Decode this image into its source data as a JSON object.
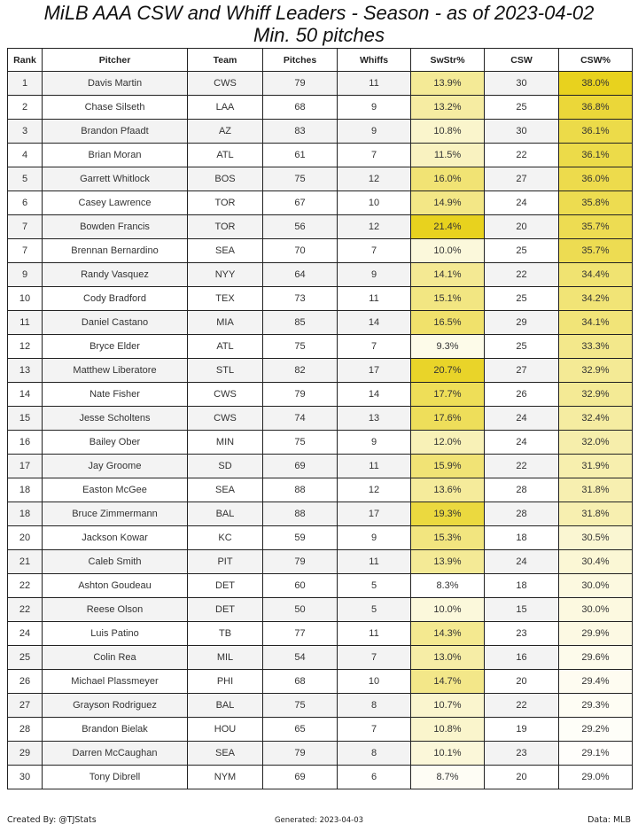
{
  "title": "MiLB AAA CSW and Whiff Leaders - Season - as of 2023-04-02",
  "subtitle": "Min. 50 pitches",
  "footer": {
    "created_by": "Created By: @TJStats",
    "generated": "Generated: 2023-04-03",
    "data_source": "Data: MLB"
  },
  "colors": {
    "scale_low": "#ffffff",
    "scale_high": "#e8d21e",
    "row_alt": "#f3f3f3",
    "border": "#222222"
  },
  "chart_data": {
    "type": "table",
    "title": "MiLB AAA CSW and Whiff Leaders - Season - as of 2023-04-02",
    "subtitle": "Min. 50 pitches",
    "columns": [
      "Rank",
      "Pitcher",
      "Team",
      "Pitches",
      "Whiffs",
      "SwStr%",
      "CSW",
      "CSW%"
    ],
    "color_scaled_columns": [
      "SwStr%",
      "CSW%"
    ],
    "rows": [
      [
        "1",
        "Davis Martin",
        "CWS",
        "79",
        "11",
        "13.9%",
        "30",
        "38.0%"
      ],
      [
        "2",
        "Chase Silseth",
        "LAA",
        "68",
        "9",
        "13.2%",
        "25",
        "36.8%"
      ],
      [
        "3",
        "Brandon Pfaadt",
        "AZ",
        "83",
        "9",
        "10.8%",
        "30",
        "36.1%"
      ],
      [
        "4",
        "Brian Moran",
        "ATL",
        "61",
        "7",
        "11.5%",
        "22",
        "36.1%"
      ],
      [
        "5",
        "Garrett Whitlock",
        "BOS",
        "75",
        "12",
        "16.0%",
        "27",
        "36.0%"
      ],
      [
        "6",
        "Casey Lawrence",
        "TOR",
        "67",
        "10",
        "14.9%",
        "24",
        "35.8%"
      ],
      [
        "7",
        "Bowden Francis",
        "TOR",
        "56",
        "12",
        "21.4%",
        "20",
        "35.7%"
      ],
      [
        "7",
        "Brennan Bernardino",
        "SEA",
        "70",
        "7",
        "10.0%",
        "25",
        "35.7%"
      ],
      [
        "9",
        "Randy Vasquez",
        "NYY",
        "64",
        "9",
        "14.1%",
        "22",
        "34.4%"
      ],
      [
        "10",
        "Cody Bradford",
        "TEX",
        "73",
        "11",
        "15.1%",
        "25",
        "34.2%"
      ],
      [
        "11",
        "Daniel Castano",
        "MIA",
        "85",
        "14",
        "16.5%",
        "29",
        "34.1%"
      ],
      [
        "12",
        "Bryce Elder",
        "ATL",
        "75",
        "7",
        "9.3%",
        "25",
        "33.3%"
      ],
      [
        "13",
        "Matthew Liberatore",
        "STL",
        "82",
        "17",
        "20.7%",
        "27",
        "32.9%"
      ],
      [
        "14",
        "Nate Fisher",
        "CWS",
        "79",
        "14",
        "17.7%",
        "26",
        "32.9%"
      ],
      [
        "15",
        "Jesse Scholtens",
        "CWS",
        "74",
        "13",
        "17.6%",
        "24",
        "32.4%"
      ],
      [
        "16",
        "Bailey Ober",
        "MIN",
        "75",
        "9",
        "12.0%",
        "24",
        "32.0%"
      ],
      [
        "17",
        "Jay Groome",
        "SD",
        "69",
        "11",
        "15.9%",
        "22",
        "31.9%"
      ],
      [
        "18",
        "Easton McGee",
        "SEA",
        "88",
        "12",
        "13.6%",
        "28",
        "31.8%"
      ],
      [
        "18",
        "Bruce Zimmermann",
        "BAL",
        "88",
        "17",
        "19.3%",
        "28",
        "31.8%"
      ],
      [
        "20",
        "Jackson Kowar",
        "KC",
        "59",
        "9",
        "15.3%",
        "18",
        "30.5%"
      ],
      [
        "21",
        "Caleb Smith",
        "PIT",
        "79",
        "11",
        "13.9%",
        "24",
        "30.4%"
      ],
      [
        "22",
        "Ashton Goudeau",
        "DET",
        "60",
        "5",
        "8.3%",
        "18",
        "30.0%"
      ],
      [
        "22",
        "Reese Olson",
        "DET",
        "50",
        "5",
        "10.0%",
        "15",
        "30.0%"
      ],
      [
        "24",
        "Luis Patino",
        "TB",
        "77",
        "11",
        "14.3%",
        "23",
        "29.9%"
      ],
      [
        "25",
        "Colin Rea",
        "MIL",
        "54",
        "7",
        "13.0%",
        "16",
        "29.6%"
      ],
      [
        "26",
        "Michael Plassmeyer",
        "PHI",
        "68",
        "10",
        "14.7%",
        "20",
        "29.4%"
      ],
      [
        "27",
        "Grayson Rodriguez",
        "BAL",
        "75",
        "8",
        "10.7%",
        "22",
        "29.3%"
      ],
      [
        "28",
        "Brandon Bielak",
        "HOU",
        "65",
        "7",
        "10.8%",
        "19",
        "29.2%"
      ],
      [
        "29",
        "Darren McCaughan",
        "SEA",
        "79",
        "8",
        "10.1%",
        "23",
        "29.1%"
      ],
      [
        "30",
        "Tony Dibrell",
        "NYM",
        "69",
        "6",
        "8.7%",
        "20",
        "29.0%"
      ]
    ]
  }
}
